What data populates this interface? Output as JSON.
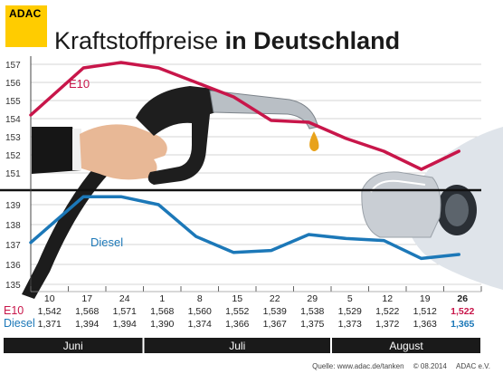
{
  "logo": {
    "text": "ADAC"
  },
  "title": {
    "light": "Kraftstoffpreise",
    "bold": "in Deutschland"
  },
  "footer": {
    "source": "Quelle: www.adac.de/tanken",
    "copyright": "© 08.2014",
    "org": "ADAC e.V."
  },
  "colors": {
    "e10": "#c8164a",
    "diesel": "#1c78b8",
    "month_bar": "#1a1a1a",
    "highlight_e10": "#c8164a",
    "highlight_diesel": "#1c78b8"
  },
  "chart_data": {
    "type": "line",
    "x": [
      "10",
      "17",
      "24",
      "1",
      "8",
      "15",
      "22",
      "29",
      "5",
      "12",
      "19",
      "26"
    ],
    "months": [
      {
        "label": "Juni",
        "span": [
          0,
          2
        ]
      },
      {
        "label": "Juli",
        "span": [
          3,
          7
        ]
      },
      {
        "label": "August",
        "span": [
          8,
          11
        ]
      }
    ],
    "series": [
      {
        "name": "E10",
        "values": [
          1.542,
          1.568,
          1.571,
          1.568,
          1.56,
          1.552,
          1.539,
          1.538,
          1.529,
          1.522,
          1.512,
          1.522
        ],
        "labels": [
          "1,542",
          "1,568",
          "1,571",
          "1,568",
          "1,560",
          "1,552",
          "1,539",
          "1,538",
          "1,529",
          "1,522",
          "1,512",
          "1,522"
        ],
        "ylim": [
          1.505,
          1.575
        ],
        "ticks": [
          "157",
          "156",
          "155",
          "154",
          "153",
          "152",
          "151"
        ]
      },
      {
        "name": "Diesel",
        "values": [
          1.371,
          1.394,
          1.394,
          1.39,
          1.374,
          1.366,
          1.367,
          1.375,
          1.373,
          1.372,
          1.363,
          1.365
        ],
        "labels": [
          "1,371",
          "1,394",
          "1,394",
          "1,390",
          "1,374",
          "1,366",
          "1,367",
          "1,375",
          "1,373",
          "1,372",
          "1,363",
          "1,365"
        ],
        "ylim": [
          1.35,
          1.4
        ],
        "ticks": [
          "139",
          "138",
          "137",
          "136",
          "135"
        ]
      }
    ],
    "highlight_last": true,
    "grid": true
  }
}
